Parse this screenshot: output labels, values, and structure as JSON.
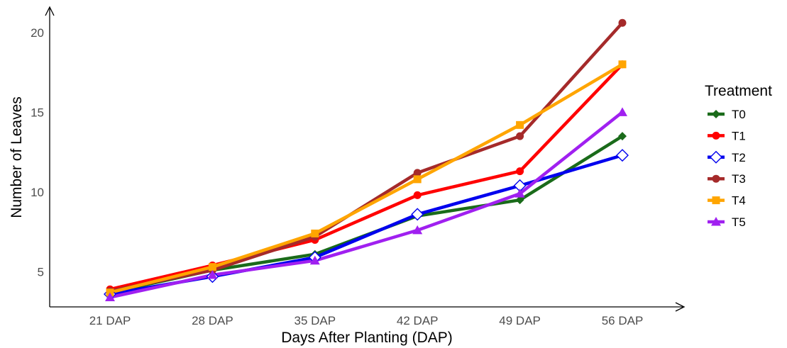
{
  "chart_data": {
    "type": "line",
    "xlabel": "Days After Planting (DAP)",
    "ylabel": "Number of Leaves",
    "categories": [
      "21 DAP",
      "28 DAP",
      "35 DAP",
      "42 DAP",
      "49 DAP",
      "56 DAP"
    ],
    "yticks": [
      5,
      10,
      15,
      20
    ],
    "ylim": [
      2.8,
      21.5
    ],
    "grid": false,
    "legend": {
      "title": "Treatment",
      "position": "right"
    },
    "series": [
      {
        "name": "T0",
        "color": "#1a6b1a",
        "marker": "diamond-filled",
        "values": [
          3.7,
          5.1,
          6.1,
          8.5,
          9.5,
          13.5
        ]
      },
      {
        "name": "T1",
        "color": "#ff0000",
        "marker": "circle",
        "values": [
          3.9,
          5.4,
          7.0,
          9.8,
          11.3,
          18.0
        ]
      },
      {
        "name": "T2",
        "color": "#0000ee",
        "marker": "diamond-open",
        "values": [
          3.6,
          4.7,
          5.9,
          8.6,
          10.4,
          12.3
        ]
      },
      {
        "name": "T3",
        "color": "#a52a2a",
        "marker": "circle",
        "values": [
          3.8,
          5.1,
          7.2,
          11.2,
          13.5,
          20.6
        ]
      },
      {
        "name": "T4",
        "color": "#ffa500",
        "marker": "square",
        "values": [
          3.7,
          5.3,
          7.4,
          10.8,
          14.2,
          18.0
        ]
      },
      {
        "name": "T5",
        "color": "#a020f0",
        "marker": "triangle",
        "values": [
          3.4,
          4.8,
          5.7,
          7.6,
          9.9,
          15.0
        ]
      }
    ]
  }
}
